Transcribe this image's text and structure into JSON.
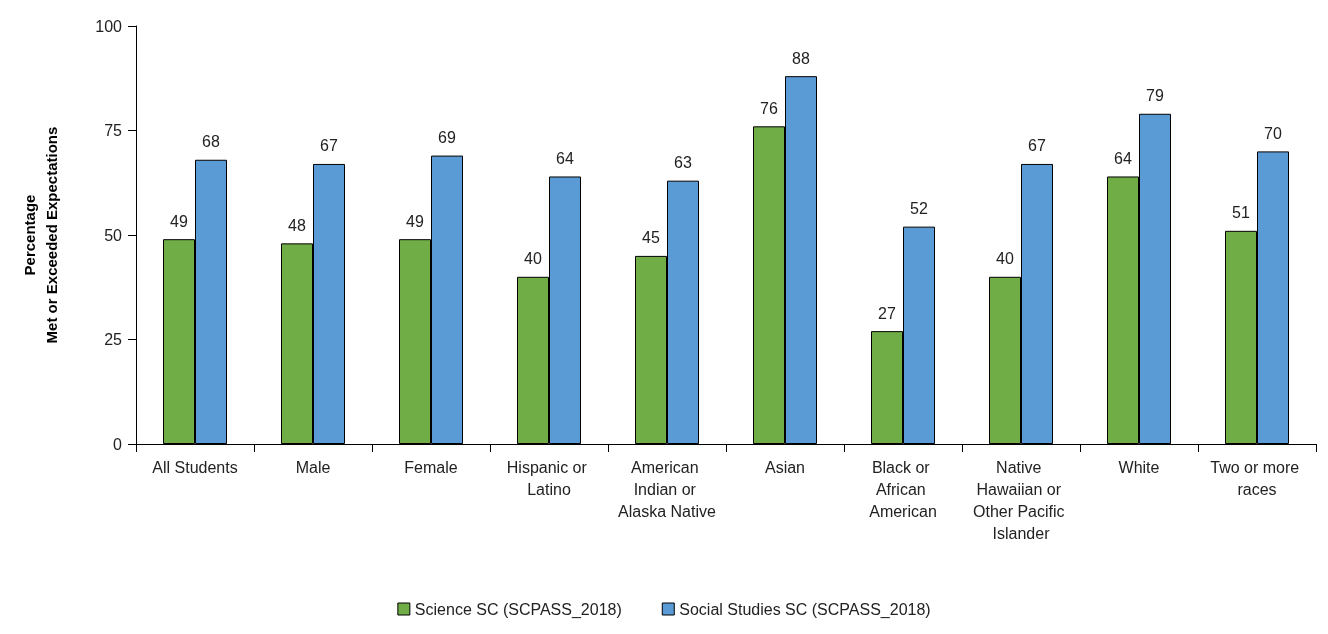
{
  "chart_data": {
    "type": "bar",
    "ylabel": "Percentage\nMet or Exceeded Expectations",
    "categories": [
      "All Students",
      "Male",
      "Female",
      "Hispanic or Latino",
      "American Indian or Alaska Native",
      "Asian",
      "Black or African American",
      "Native Hawaiian or Other Pacific Islander",
      "White",
      "Two or more races"
    ],
    "series": [
      {
        "name": "Science SC (SCPASS_2018)",
        "color": "#70ad47",
        "values": [
          49,
          48,
          49,
          40,
          45,
          76,
          27,
          40,
          64,
          51
        ]
      },
      {
        "name": "Social Studies SC (SCPASS_2018)",
        "color": "#5b9bd5",
        "values": [
          68,
          67,
          69,
          64,
          63,
          88,
          52,
          67,
          79,
          70
        ]
      }
    ],
    "ylim": [
      0,
      100
    ],
    "yticks": [
      0,
      25,
      50,
      75,
      100
    ],
    "grid": false,
    "legend": "bottom",
    "data_labels": true
  }
}
